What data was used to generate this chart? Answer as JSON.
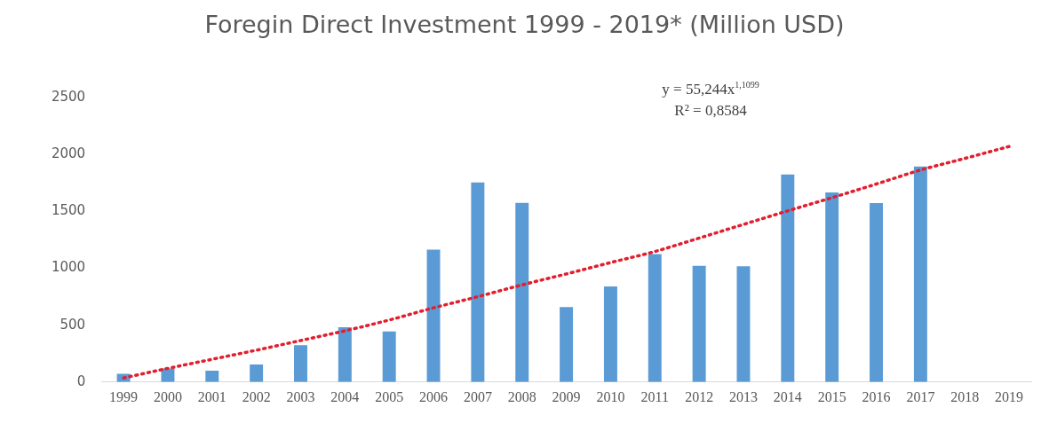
{
  "chart_data": {
    "type": "bar",
    "title": "Foregin Direct Investment 1999 - 2019* (Million USD)",
    "categories": [
      "1999",
      "2000",
      "2001",
      "2002",
      "2003",
      "2004",
      "2005",
      "2006",
      "2007",
      "2008",
      "2009",
      "2010",
      "2011",
      "2012",
      "2013",
      "2014",
      "2015",
      "2016",
      "2017",
      "2018",
      "2019"
    ],
    "series": [
      {
        "color": "#5b9bd5",
        "values": [
          72,
          120,
          100,
          154,
          324,
          482,
          445,
          1163,
          1753,
          1575,
          659,
          841,
          1125,
          1022,
          1017,
          1824,
          1667,
          1573,
          1894,
          null,
          null
        ]
      },
      {
        "type": "line",
        "color": "#e0202f",
        "line_style": "dotted",
        "marker": "none",
        "values": [
          36,
          120,
          200,
          280,
          365,
          450,
          545,
          652,
          750,
          854,
          950,
          1050,
          1147,
          1265,
          1385,
          1504,
          1620,
          1740,
          1863,
          1965,
          2070
        ]
      }
    ],
    "ylim": [
      0,
      2500
    ],
    "yticks": [
      0,
      500,
      1000,
      1500,
      2000,
      2500
    ],
    "grid": false,
    "legend": false,
    "annotations": [
      "y = 55,244x$^{1,1099}$",
      "R² = 0,8584"
    ]
  }
}
